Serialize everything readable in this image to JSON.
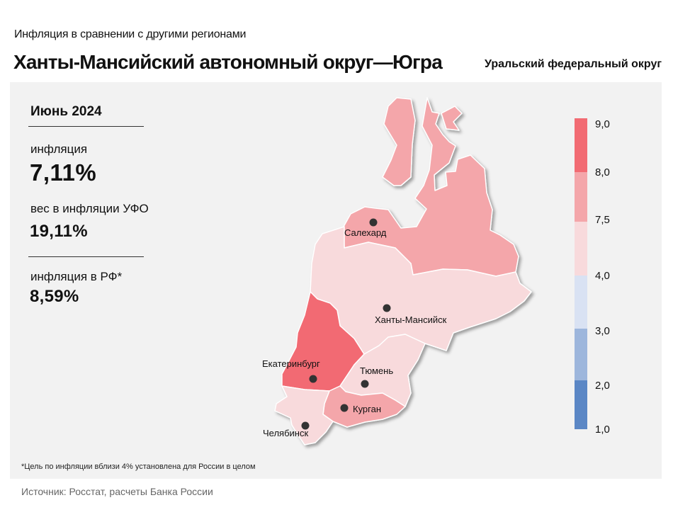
{
  "header": {
    "subtitle": "Инфляция  в сравнении  с другими  регионами",
    "title": "Ханты-Мансийский автономный округ—Югра",
    "district": "Уральский федеральный округ"
  },
  "stats": {
    "period": "Июнь 2024",
    "inflation_label": "инфляция",
    "inflation_value": "7,11%",
    "weight_label": "вес в инфляции  УФО",
    "weight_value": "19,11%",
    "rf_label": "инфляция  в РФ*",
    "rf_value": "8,59%"
  },
  "map": {
    "regions": [
      {
        "name": "Ямало-Ненецкий АО",
        "class": "7,5–8,0",
        "color": "#f4a6aa"
      },
      {
        "name": "Ханты-Мансийский АО",
        "class": "4,0–7,5",
        "color": "#f8dadc"
      },
      {
        "name": "Свердловская область",
        "class": "8,0–9,0",
        "color": "#f26b73"
      },
      {
        "name": "Тюменская область",
        "class": "4,0–7,5",
        "color": "#f8dadc"
      },
      {
        "name": "Курганская область",
        "class": "7,5–8,0",
        "color": "#f4a6aa"
      },
      {
        "name": "Челябинская область",
        "class": "4,0–7,5",
        "color": "#f8dadc"
      }
    ],
    "cities": {
      "salekhard": "Салехард",
      "khanty": "Ханты-Мансийск",
      "ekb": "Екатеринбург",
      "tyumen": "Тюмень",
      "kurgan": "Курган",
      "chelyabinsk": "Челябинск"
    }
  },
  "legend": {
    "ticks": [
      "9,0",
      "8,0",
      "7,5",
      "4,0",
      "3,0",
      "2,0",
      "1,0"
    ],
    "colors": [
      "#f26b73",
      "#f4a6aa",
      "#f8dadc",
      "#d9e2f3",
      "#9db6dc",
      "#5b87c5"
    ]
  },
  "footnote": "*Цель по инфляции вблизи 4% установлена для России в целом",
  "source": "Источник: Росстат, расчеты Банка России"
}
